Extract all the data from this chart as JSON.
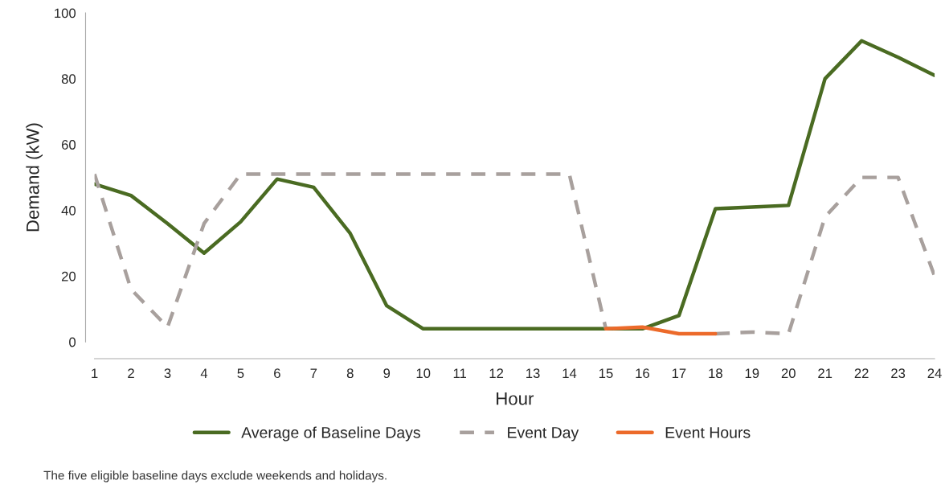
{
  "chart_data": {
    "type": "line",
    "xlabel": "Hour",
    "ylabel": "Demand (kW)",
    "x": [
      1,
      2,
      3,
      4,
      5,
      6,
      7,
      8,
      9,
      10,
      11,
      12,
      13,
      14,
      15,
      16,
      17,
      18,
      19,
      20,
      21,
      22,
      23,
      24
    ],
    "xlim": [
      1,
      24
    ],
    "xticks": [
      1,
      2,
      3,
      4,
      5,
      6,
      7,
      8,
      9,
      10,
      11,
      12,
      13,
      14,
      15,
      16,
      17,
      18,
      19,
      20,
      21,
      22,
      23,
      24
    ],
    "ylim": [
      0,
      100
    ],
    "yticks": [
      0,
      20,
      40,
      60,
      80,
      100
    ],
    "grid": false,
    "legend": "bottom",
    "series": [
      {
        "name": "Average of Baseline Days",
        "color": "#4a6b22",
        "line_style": "solid",
        "values": [
          48,
          44.5,
          36,
          27,
          36.5,
          49.5,
          47,
          33,
          11,
          4,
          4,
          4,
          4,
          4,
          4,
          4,
          8,
          40.5,
          41,
          41.5,
          80,
          91.5,
          86.5,
          81
        ]
      },
      {
        "name": "Event Day",
        "color": "#a8a09d",
        "line_style": "dashed",
        "values": [
          51,
          16,
          4.5,
          36,
          51,
          51,
          51,
          51,
          51,
          51,
          51,
          51,
          51,
          51,
          4,
          null,
          null,
          2.5,
          3,
          2.5,
          38,
          50,
          50,
          20
        ]
      },
      {
        "name": "Event Hours",
        "color": "#ec6a2a",
        "line_style": "solid",
        "values": [
          null,
          null,
          null,
          null,
          null,
          null,
          null,
          null,
          null,
          null,
          null,
          null,
          null,
          null,
          4,
          4.5,
          2.5,
          2.5,
          null,
          null,
          null,
          null,
          null,
          null
        ]
      }
    ],
    "annotations": [
      "The five eligible baseline days exclude weekends and holidays."
    ]
  }
}
